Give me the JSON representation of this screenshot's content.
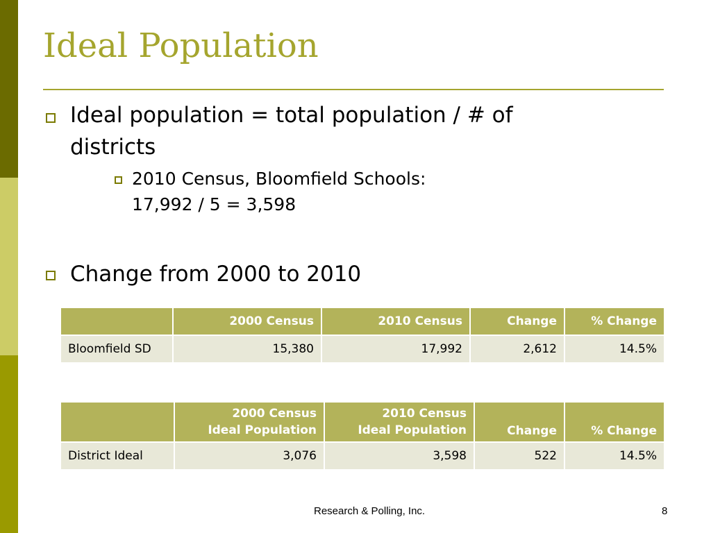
{
  "slide": {
    "title": "Ideal Population",
    "bullets": [
      {
        "text_line1": "Ideal population = total population / # of",
        "text_line2": "districts"
      },
      {
        "text_line1": "2010 Census, Bloomfield Schools:",
        "text_line2": "17,992 / 5 = 3,598"
      },
      {
        "text_line1": "Change from 2000 to 2010"
      }
    ],
    "table1": {
      "headers": [
        "",
        "2000 Census",
        "2010 Census",
        "Change",
        "% Change"
      ],
      "row": [
        "Bloomfield SD",
        "15,380",
        "17,992",
        "2,612",
        "14.5%"
      ]
    },
    "table2": {
      "headers": [
        {
          "l1": "",
          "l2": ""
        },
        {
          "l1": "2000 Census",
          "l2": "Ideal Population"
        },
        {
          "l1": "2010 Census",
          "l2": "Ideal Population"
        },
        {
          "l1": "",
          "l2": "Change"
        },
        {
          "l1": "",
          "l2": "% Change"
        }
      ],
      "row": [
        "District Ideal",
        "3,076",
        "3,598",
        "522",
        "14.5%"
      ]
    },
    "footer": {
      "company": "Research & Polling, Inc.",
      "page_number": "8"
    },
    "colors": {
      "title": "#a5a52e",
      "header_bg": "#b3b35a",
      "cell_bg": "#e8e8d8",
      "bar_dark": "#6b6b00",
      "bar_light": "#cccc66",
      "bar_mid": "#9a9a00"
    }
  }
}
